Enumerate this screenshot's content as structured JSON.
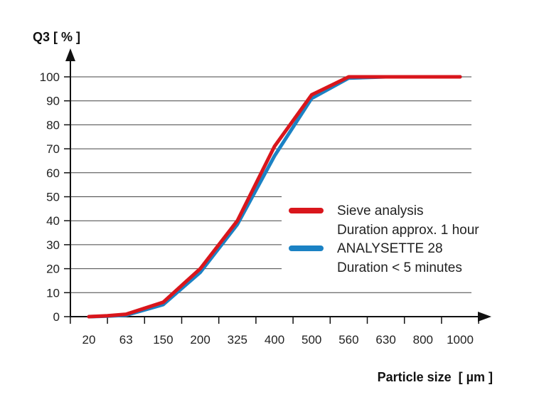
{
  "chart_data": {
    "type": "line",
    "ylabel": "Q3 [ % ]",
    "xlabel": "Particle size  [ µm ]",
    "ylim": [
      0,
      100
    ],
    "yticks": [
      0,
      10,
      20,
      30,
      40,
      50,
      60,
      70,
      80,
      90,
      100
    ],
    "categories": [
      "20",
      "63",
      "150",
      "200",
      "325",
      "400",
      "500",
      "560",
      "630",
      "800",
      "1000"
    ],
    "grid": true,
    "legend_position": "center-right",
    "series": [
      {
        "name": "Sieve analysis",
        "name_line2": "Duration approx. 1 hour",
        "color": "#d9161c",
        "points": [
          [
            0,
            0
          ],
          [
            0.5,
            0.4
          ],
          [
            1,
            1
          ],
          [
            2,
            6
          ],
          [
            3,
            20
          ],
          [
            4,
            40
          ],
          [
            5,
            71
          ],
          [
            6,
            92.5
          ],
          [
            7,
            100
          ],
          [
            8,
            100
          ],
          [
            9,
            100
          ],
          [
            10,
            100
          ]
        ]
      },
      {
        "name": "ANALYSETTE 28",
        "name_line2": "Duration < 5 minutes",
        "color": "#1b82c4",
        "points": [
          [
            0,
            0
          ],
          [
            0.5,
            0.2
          ],
          [
            1,
            0.6
          ],
          [
            2,
            5
          ],
          [
            3,
            18.5
          ],
          [
            4,
            38.5
          ],
          [
            5,
            67
          ],
          [
            6,
            91
          ],
          [
            7,
            99.5
          ],
          [
            8,
            100
          ],
          [
            9,
            100
          ],
          [
            10,
            100
          ]
        ]
      }
    ]
  }
}
